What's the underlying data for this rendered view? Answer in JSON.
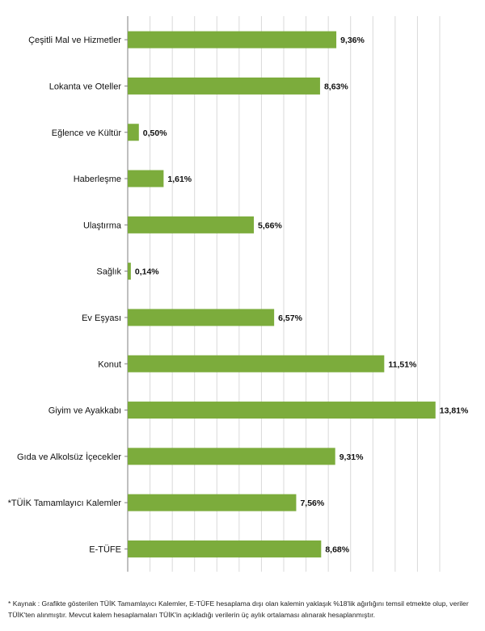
{
  "chart_data": {
    "type": "bar",
    "orientation": "horizontal",
    "categories": [
      "Çeşitli Mal ve Hizmetler",
      "Lokanta ve Oteller",
      "Eğlence ve Kültür",
      "Haberleşme",
      "Ulaştırma",
      "Sağlık",
      "Ev Eşyası",
      "Konut",
      "Giyim ve Ayakkabı",
      "Gıda ve Alkolsüz İçecekler",
      "*TÜİK Tamamlayıcı Kalemler",
      "E-TÜFE"
    ],
    "values": [
      9.36,
      8.63,
      0.5,
      1.61,
      5.66,
      0.14,
      6.57,
      11.51,
      13.81,
      9.31,
      7.56,
      8.68
    ],
    "value_labels": [
      "9,36%",
      "8,63%",
      "0,50%",
      "1,61%",
      "5,66%",
      "0,14%",
      "6,57%",
      "11,51%",
      "13,81%",
      "9,31%",
      "7,56%",
      "8,68%"
    ],
    "xlim": [
      0,
      14
    ],
    "grid": true,
    "bar_color": "#7cac3c",
    "grid_color": "#d9d9d9",
    "title": "",
    "xlabel": "",
    "ylabel": ""
  },
  "footnote": "*  Kaynak : Grafikte gösterilen TÜİK Tamamlayıcı Kalemler, E-TÜFE hesaplama dışı olan kalemin yaklaşık %18'lik ağırlığını temsil etmekte olup, veriler TÜİK'ten alınmıştır. Mevcut kalem hesaplamaları TÜİK'in açıkladığı verilerin üç aylık ortalaması alınarak hesaplanmıştır."
}
